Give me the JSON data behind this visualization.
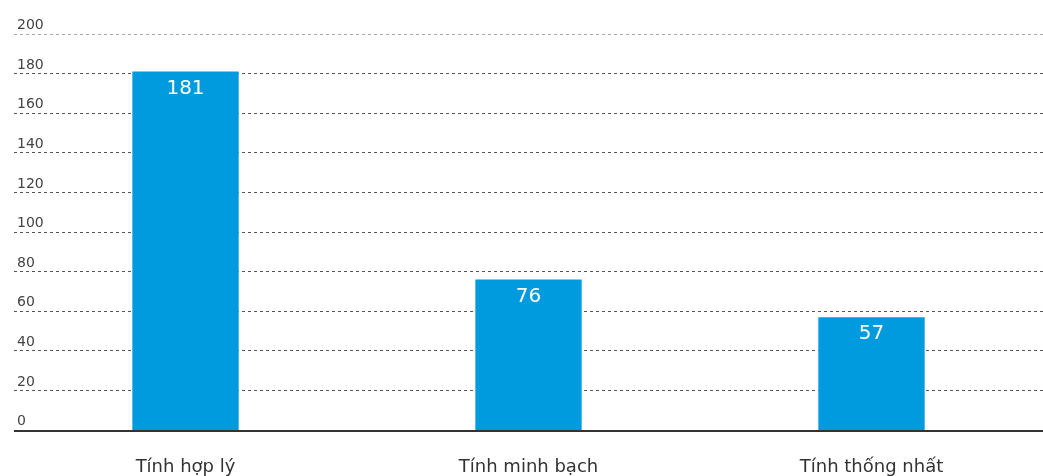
{
  "chart_data": {
    "type": "bar",
    "categories": [
      "Tính hợp lý",
      "Tính minh bạch",
      "Tính thống nhất"
    ],
    "values": [
      181,
      76,
      57
    ],
    "color": "#009ade",
    "ylim": [
      0,
      200
    ],
    "yticks": [
      0,
      20,
      40,
      60,
      80,
      100,
      120,
      140,
      160,
      180,
      200
    ],
    "grid": "y",
    "data_labels": true
  }
}
